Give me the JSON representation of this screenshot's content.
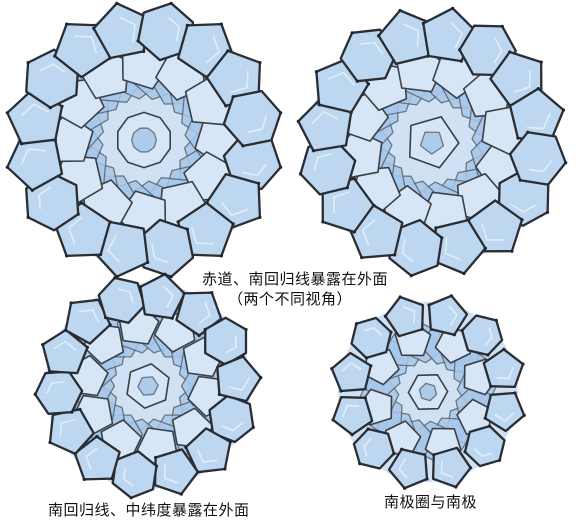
{
  "figure": {
    "captions": {
      "equator_tropics": "赤道、南回归线暴露在外面",
      "two_views": "（两个不同视角）",
      "tropic_midlat": "南回归线、中纬度暴露在外面",
      "polar": "南极圈与南极"
    },
    "colors": {
      "cell_fill": "#bcd7ef",
      "cell_back": "#a7c8ea",
      "edge": "#2a2d33",
      "background": "#ffffff"
    }
  }
}
